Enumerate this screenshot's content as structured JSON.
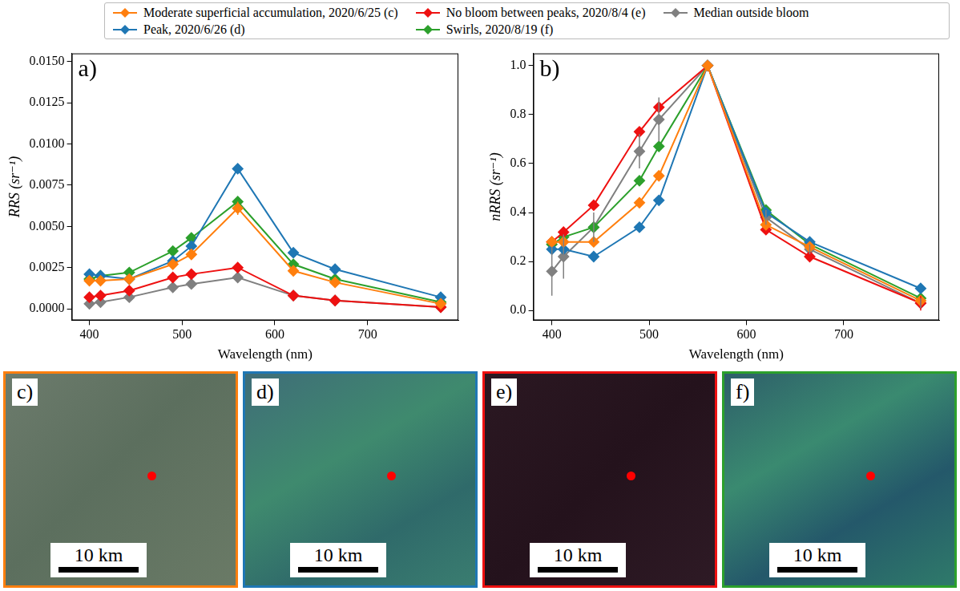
{
  "chart_data": [
    {
      "type": "line",
      "panel_label": "a)",
      "x_label": "Wavelength (nm)",
      "y_label": "RRS (sr⁻¹)",
      "x": [
        400,
        412,
        443,
        490,
        510,
        560,
        620,
        665,
        779
      ],
      "xlim": [
        381,
        798
      ],
      "xticks": [
        400,
        500,
        600,
        700
      ],
      "ylim": [
        -0.0007,
        0.0155
      ],
      "yticks": [
        {
          "value": 0,
          "label": "0.0000"
        },
        0.0025,
        {
          "value": 0.005,
          "label": "0.0050"
        },
        0.0075,
        {
          "value": 0.01,
          "label": "0.0100"
        },
        0.0125,
        {
          "value": 0.015,
          "label": "0.0150"
        }
      ],
      "grid": false,
      "legend": "top",
      "marker": "diamond",
      "series": [
        {
          "name": "Moderate superficial accumulation, 2020/6/25 (c)",
          "color": "#ff7f0e",
          "values": [
            0.0017,
            0.0017,
            0.0018,
            0.0027,
            0.0033,
            0.0061,
            0.0023,
            0.0016,
            0.0003
          ],
          "errors": [
            0,
            0,
            0,
            0,
            0,
            0.0004,
            0,
            0,
            0
          ]
        },
        {
          "name": "Peak, 2020/6/26 (d)",
          "color": "#1f77b4",
          "values": [
            0.0021,
            0.002,
            0.0018,
            0.0029,
            0.0038,
            0.0085,
            0.0034,
            0.0024,
            0.0007
          ]
        },
        {
          "name": "No bloom between peaks, 2020/8/4 (e)",
          "color": "#ee1111",
          "values": [
            0.0007,
            0.0008,
            0.0011,
            0.0019,
            0.0021,
            0.0025,
            0.0008,
            0.0005,
            0.0001
          ]
        },
        {
          "name": "Swirls, 2020/8/19 (f)",
          "color": "#2ca02c",
          "values": [
            0.0018,
            0.002,
            0.0022,
            0.0035,
            0.0043,
            0.0065,
            0.0027,
            0.0018,
            0.0004
          ]
        },
        {
          "name": "Median outside bloom",
          "color": "#808080",
          "values": [
            0.0003,
            0.0004,
            0.0007,
            0.0013,
            0.0015,
            0.0019,
            0.0008,
            0.0005,
            0.0001
          ]
        }
      ]
    },
    {
      "type": "line",
      "panel_label": "b)",
      "x_label": "Wavelength (nm)",
      "y_label": "nRRS (sr⁻¹)",
      "x": [
        400,
        412,
        443,
        490,
        510,
        560,
        620,
        665,
        779
      ],
      "xlim": [
        381,
        798
      ],
      "xticks": [
        400,
        500,
        600,
        700
      ],
      "ylim": [
        -0.04,
        1.05
      ],
      "yticks": [
        {
          "value": 0,
          "label": "0.0"
        },
        0.2,
        0.4,
        0.6,
        0.8,
        {
          "value": 1,
          "label": "1.0"
        }
      ],
      "grid": false,
      "marker": "diamond",
      "series": [
        {
          "name": "Moderate superficial accumulation, 2020/6/25 (c)",
          "color": "#ff7f0e",
          "values": [
            0.28,
            0.28,
            0.28,
            0.44,
            0.55,
            1.0,
            0.35,
            0.26,
            0.04
          ]
        },
        {
          "name": "Peak, 2020/6/26 (d)",
          "color": "#1f77b4",
          "values": [
            0.25,
            0.25,
            0.22,
            0.34,
            0.45,
            1.0,
            0.4,
            0.28,
            0.09
          ]
        },
        {
          "name": "No bloom between peaks, 2020/8/4 (e)",
          "color": "#ee1111",
          "values": [
            0.28,
            0.32,
            0.43,
            0.73,
            0.83,
            1.0,
            0.33,
            0.22,
            0.03
          ],
          "errors": [
            0,
            0,
            0,
            0,
            0,
            0,
            0,
            0,
            0.03
          ]
        },
        {
          "name": "Swirls, 2020/8/19 (f)",
          "color": "#2ca02c",
          "values": [
            0.27,
            0.3,
            0.34,
            0.53,
            0.67,
            1.0,
            0.41,
            0.27,
            0.05
          ]
        },
        {
          "name": "Median outside bloom",
          "color": "#808080",
          "values": [
            0.16,
            0.22,
            0.34,
            0.65,
            0.78,
            1.0,
            0.38,
            0.25,
            0.03
          ],
          "errors": [
            0.1,
            0.09,
            0.06,
            0.07,
            0.09,
            0,
            0.03,
            0.02,
            0.02
          ]
        }
      ]
    }
  ],
  "images": [
    {
      "panel_label": "c)",
      "scale_bar": "10 km"
    },
    {
      "panel_label": "d)",
      "scale_bar": "10 km"
    },
    {
      "panel_label": "e)",
      "scale_bar": "10 km"
    },
    {
      "panel_label": "f)",
      "scale_bar": "10 km"
    }
  ]
}
